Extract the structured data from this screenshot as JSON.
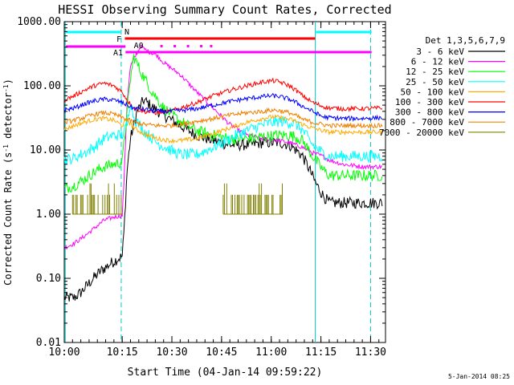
{
  "chart_data": {
    "type": "line",
    "title": "HESSI Observing Summary Count Rates, Corrected",
    "xlabel": "Start Time (04-Jan-14 09:59:22)",
    "ylabel_prefix": "Corrected Count Rate (s",
    "ylabel_sup1": "-1",
    "ylabel_mid": " detector",
    "ylabel_sup2": "-1",
    "ylabel_suffix": ")",
    "yscale": "log",
    "ylim": [
      0.01,
      1000
    ],
    "xlim_minutes": [
      0,
      97
    ],
    "x_ticks": [
      {
        "m": 0,
        "label": "10:00"
      },
      {
        "m": 17.5,
        "label": "10:15"
      },
      {
        "m": 32.5,
        "label": "10:30"
      },
      {
        "m": 47.5,
        "label": "10:45"
      },
      {
        "m": 62.5,
        "label": "11:00"
      },
      {
        "m": 77.5,
        "label": "11:15"
      },
      {
        "m": 92.5,
        "label": "11:30"
      }
    ],
    "y_ticks": [
      {
        "v": 1000,
        "label": "1000.00"
      },
      {
        "v": 100,
        "label": "100.00"
      },
      {
        "v": 10,
        "label": "10.00"
      },
      {
        "v": 1,
        "label": "1.00"
      },
      {
        "v": 0.1,
        "label": "0.10"
      },
      {
        "v": 0.01,
        "label": "0.01"
      }
    ],
    "legend_title": "Det 1,3,5,6,7,9",
    "series": [
      {
        "name": "3 - 6 keV",
        "color": "#000000",
        "points": [
          [
            0,
            0.05
          ],
          [
            3,
            0.05
          ],
          [
            5,
            0.06
          ],
          [
            8,
            0.09
          ],
          [
            11,
            0.13
          ],
          [
            14,
            0.17
          ],
          [
            16,
            0.2
          ],
          [
            17.5,
            0.22
          ],
          [
            18,
            0.5
          ],
          [
            19,
            5
          ],
          [
            20,
            15
          ],
          [
            22,
            40
          ],
          [
            24,
            60
          ],
          [
            27,
            45
          ],
          [
            30,
            35
          ],
          [
            35,
            24
          ],
          [
            40,
            17
          ],
          [
            45,
            14
          ],
          [
            50,
            12
          ],
          [
            55,
            12
          ],
          [
            60,
            13
          ],
          [
            65,
            13
          ],
          [
            68,
            12
          ],
          [
            70,
            10
          ],
          [
            72,
            8
          ],
          [
            74,
            5
          ],
          [
            76,
            3
          ],
          [
            78,
            2
          ],
          [
            80,
            1.5
          ],
          [
            84,
            1.5
          ],
          [
            90,
            1.5
          ],
          [
            94,
            1.5
          ],
          [
            96,
            1.5
          ]
        ]
      },
      {
        "name": "6 - 12 keV",
        "color": "#ff00ff",
        "points": [
          [
            0,
            0.3
          ],
          [
            3,
            0.35
          ],
          [
            6,
            0.45
          ],
          [
            9,
            0.6
          ],
          [
            12,
            0.8
          ],
          [
            15,
            0.9
          ],
          [
            17.5,
            0.95
          ],
          [
            18,
            3
          ],
          [
            19,
            60
          ],
          [
            20,
            200
          ],
          [
            22,
            330
          ],
          [
            23,
            410
          ],
          [
            25,
            350
          ],
          [
            28,
            300
          ],
          [
            30,
            230
          ],
          [
            35,
            150
          ],
          [
            40,
            80
          ],
          [
            45,
            45
          ],
          [
            50,
            25
          ],
          [
            55,
            17
          ],
          [
            60,
            15
          ],
          [
            65,
            14
          ],
          [
            68,
            13
          ],
          [
            70,
            12
          ],
          [
            72,
            11
          ],
          [
            75,
            9
          ],
          [
            78,
            8
          ],
          [
            80,
            7
          ],
          [
            84,
            6
          ],
          [
            90,
            5.5
          ],
          [
            96,
            5.5
          ]
        ]
      },
      {
        "name": "12 - 25 keV",
        "color": "#00ff00",
        "points": [
          [
            0,
            2.5
          ],
          [
            3,
            2.8
          ],
          [
            6,
            3.5
          ],
          [
            9,
            4.5
          ],
          [
            12,
            5.5
          ],
          [
            15,
            6
          ],
          [
            17.5,
            6.5
          ],
          [
            19,
            40
          ],
          [
            20,
            130
          ],
          [
            21,
            290
          ],
          [
            23,
            170
          ],
          [
            26,
            90
          ],
          [
            30,
            45
          ],
          [
            35,
            28
          ],
          [
            40,
            20
          ],
          [
            45,
            17
          ],
          [
            50,
            15
          ],
          [
            55,
            15
          ],
          [
            60,
            16
          ],
          [
            65,
            17
          ],
          [
            68,
            17
          ],
          [
            70,
            16
          ],
          [
            72,
            14
          ],
          [
            75,
            8
          ],
          [
            78,
            5
          ],
          [
            80,
            4
          ],
          [
            84,
            4
          ],
          [
            90,
            4
          ],
          [
            96,
            4
          ]
        ]
      },
      {
        "name": "25 - 50 keV",
        "color": "#00ffff",
        "points": [
          [
            0,
            7
          ],
          [
            3,
            7.5
          ],
          [
            6,
            9
          ],
          [
            9,
            11
          ],
          [
            12,
            15
          ],
          [
            15,
            17
          ],
          [
            17.5,
            17
          ],
          [
            19,
            25
          ],
          [
            20,
            60
          ],
          [
            21,
            32
          ],
          [
            24,
            20
          ],
          [
            28,
            13
          ],
          [
            32,
            10
          ],
          [
            35,
            8.5
          ],
          [
            40,
            8.5
          ],
          [
            45,
            11
          ],
          [
            50,
            15
          ],
          [
            55,
            20
          ],
          [
            60,
            25
          ],
          [
            65,
            28
          ],
          [
            68,
            27
          ],
          [
            70,
            25
          ],
          [
            72,
            20
          ],
          [
            75,
            12
          ],
          [
            78,
            9
          ],
          [
            80,
            8
          ],
          [
            84,
            8
          ],
          [
            90,
            8
          ],
          [
            96,
            8
          ]
        ]
      },
      {
        "name": "50 - 100 keV",
        "color": "#ffaa00",
        "points": [
          [
            0,
            21
          ],
          [
            3,
            24
          ],
          [
            6,
            27
          ],
          [
            9,
            30
          ],
          [
            12,
            31
          ],
          [
            15,
            29
          ],
          [
            17.5,
            24
          ],
          [
            19,
            30
          ],
          [
            21,
            22
          ],
          [
            24,
            18
          ],
          [
            28,
            15
          ],
          [
            32,
            14
          ],
          [
            35,
            14
          ],
          [
            40,
            15
          ],
          [
            45,
            18
          ],
          [
            50,
            22
          ],
          [
            55,
            27
          ],
          [
            60,
            31
          ],
          [
            63,
            33
          ],
          [
            65,
            32
          ],
          [
            68,
            30
          ],
          [
            70,
            28
          ],
          [
            72,
            25
          ],
          [
            75,
            22
          ],
          [
            78,
            20
          ],
          [
            80,
            19
          ],
          [
            84,
            19
          ],
          [
            90,
            19
          ],
          [
            96,
            19
          ]
        ]
      },
      {
        "name": "100 - 300 keV",
        "color": "#ff0000",
        "points": [
          [
            0,
            60
          ],
          [
            3,
            70
          ],
          [
            6,
            85
          ],
          [
            9,
            100
          ],
          [
            12,
            110
          ],
          [
            15,
            100
          ],
          [
            17.5,
            80
          ],
          [
            19,
            60
          ],
          [
            21,
            45
          ],
          [
            24,
            40
          ],
          [
            28,
            38
          ],
          [
            32,
            40
          ],
          [
            35,
            45
          ],
          [
            40,
            55
          ],
          [
            45,
            70
          ],
          [
            50,
            85
          ],
          [
            55,
            100
          ],
          [
            60,
            115
          ],
          [
            63,
            120
          ],
          [
            65,
            115
          ],
          [
            68,
            100
          ],
          [
            70,
            85
          ],
          [
            72,
            70
          ],
          [
            75,
            55
          ],
          [
            78,
            48
          ],
          [
            80,
            45
          ],
          [
            84,
            44
          ],
          [
            90,
            44
          ],
          [
            96,
            45
          ]
        ]
      },
      {
        "name": "300 - 800 keV",
        "color": "#0000ff",
        "points": [
          [
            0,
            42
          ],
          [
            3,
            45
          ],
          [
            6,
            52
          ],
          [
            9,
            58
          ],
          [
            12,
            62
          ],
          [
            15,
            60
          ],
          [
            17.5,
            55
          ],
          [
            19,
            50
          ],
          [
            21,
            45
          ],
          [
            24,
            43
          ],
          [
            28,
            40
          ],
          [
            32,
            40
          ],
          [
            35,
            41
          ],
          [
            40,
            44
          ],
          [
            45,
            50
          ],
          [
            50,
            57
          ],
          [
            55,
            63
          ],
          [
            60,
            68
          ],
          [
            63,
            70
          ],
          [
            65,
            68
          ],
          [
            68,
            62
          ],
          [
            70,
            55
          ],
          [
            72,
            48
          ],
          [
            75,
            40
          ],
          [
            78,
            33
          ],
          [
            80,
            32
          ],
          [
            84,
            31
          ],
          [
            90,
            31
          ],
          [
            96,
            32
          ]
        ]
      },
      {
        "name": "800 - 7000 keV",
        "color": "#f08000",
        "points": [
          [
            0,
            27
          ],
          [
            3,
            29
          ],
          [
            6,
            32
          ],
          [
            9,
            36
          ],
          [
            12,
            38
          ],
          [
            15,
            36
          ],
          [
            17.5,
            32
          ],
          [
            19,
            30
          ],
          [
            21,
            27
          ],
          [
            24,
            25
          ],
          [
            28,
            24
          ],
          [
            32,
            24
          ],
          [
            35,
            25
          ],
          [
            40,
            28
          ],
          [
            45,
            31
          ],
          [
            50,
            35
          ],
          [
            55,
            38
          ],
          [
            60,
            40
          ],
          [
            63,
            42
          ],
          [
            65,
            41
          ],
          [
            68,
            38
          ],
          [
            70,
            34
          ],
          [
            72,
            30
          ],
          [
            75,
            27
          ],
          [
            78,
            25
          ],
          [
            80,
            24
          ],
          [
            84,
            24
          ],
          [
            90,
            24
          ],
          [
            96,
            24
          ]
        ]
      },
      {
        "name": "7000 - 20000 keV",
        "color": "#808000",
        "points": [
          [
            2.5,
            1
          ],
          [
            17.5,
            1
          ],
          [
            null,
            null
          ],
          [
            48,
            1
          ],
          [
            66,
            1
          ]
        ]
      }
    ],
    "annotations": [
      {
        "label": "N",
        "color": "#00ffff"
      },
      {
        "label": "F",
        "color": "#ff0000"
      },
      {
        "label": "A0",
        "color": "#ff00ff"
      },
      {
        "label": "A1",
        "color": "#ff00ff"
      }
    ],
    "timestamp": "5-Jan-2014 08:25"
  }
}
